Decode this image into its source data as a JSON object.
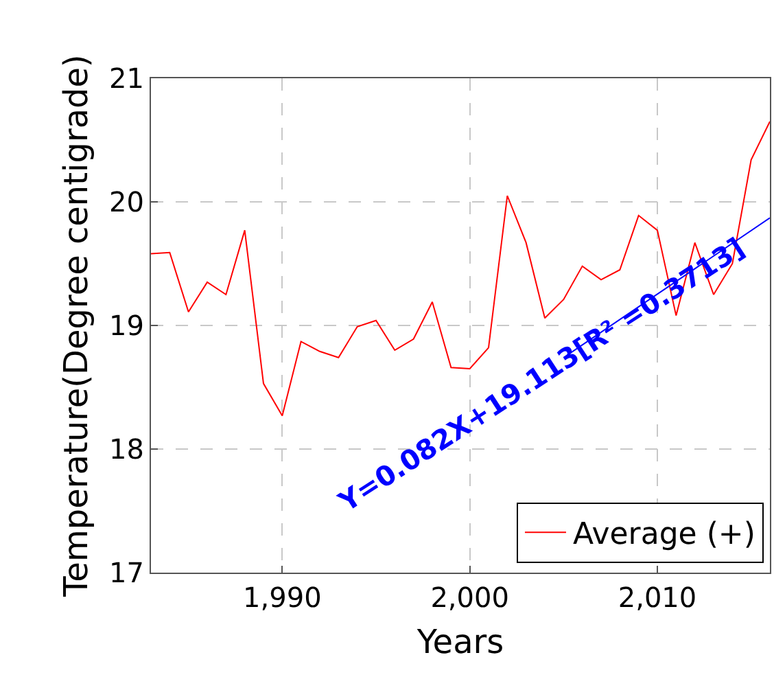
{
  "chart_data": {
    "type": "line",
    "xlabel": "Years",
    "ylabel": "Temperature(Degree centigrade)",
    "x": [
      1983,
      1984,
      1985,
      1986,
      1987,
      1988,
      1989,
      1990,
      1991,
      1992,
      1993,
      1994,
      1995,
      1996,
      1997,
      1998,
      1999,
      2000,
      2001,
      2002,
      2003,
      2004,
      2005,
      2006,
      2007,
      2008,
      2009,
      2010,
      2011,
      2012,
      2013,
      2014,
      2015,
      2016
    ],
    "series": [
      {
        "name": "Average (+)",
        "color": "#ff0000",
        "values": [
          19.58,
          19.59,
          19.11,
          19.35,
          19.25,
          19.77,
          18.53,
          18.27,
          18.87,
          18.79,
          18.74,
          18.99,
          19.04,
          18.8,
          18.89,
          19.19,
          18.66,
          18.65,
          18.82,
          20.05,
          19.67,
          19.06,
          19.21,
          19.48,
          19.37,
          19.45,
          19.89,
          19.77,
          19.08,
          19.67,
          19.25,
          19.5,
          20.34,
          20.65
        ]
      },
      {
        "type": "line",
        "color": "#0000ff",
        "x": [
          2005,
          2016
        ],
        "values": [
          18.74,
          19.87
        ]
      }
    ],
    "annotations": [
      "Y=0.082X+19.113[R² =0.3713]"
    ],
    "xlim": [
      1983,
      2016
    ],
    "ylim": [
      17,
      21
    ],
    "xticks": [
      {
        "value": 1990,
        "label": "1,990"
      },
      {
        "value": 2000,
        "label": "2,000"
      },
      {
        "value": 2010,
        "label": "2,010"
      }
    ],
    "yticks": [
      17,
      18,
      19,
      20,
      21
    ],
    "grid": true,
    "legend": "bottom right",
    "marker": "none",
    "line_style": "solid"
  }
}
